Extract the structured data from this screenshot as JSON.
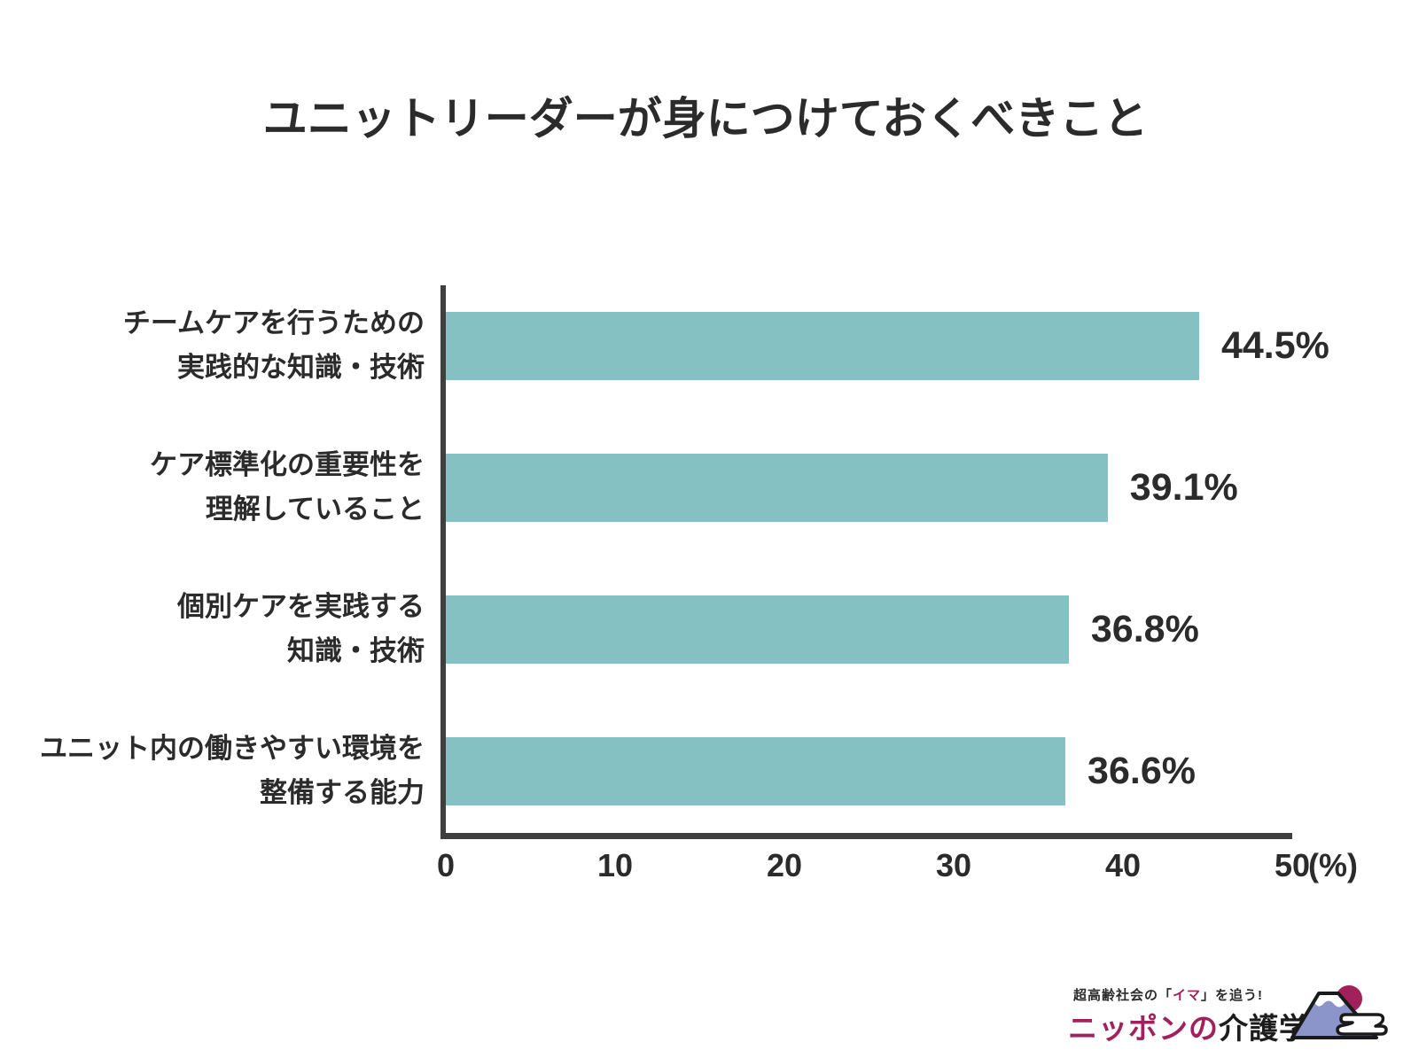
{
  "title": "ユニットリーダーが身につけておくべきこと",
  "chart_data": {
    "type": "bar",
    "orientation": "horizontal",
    "title": "ユニットリーダーが身につけておくべきこと",
    "categories": [
      "チームケアを行うための実践的な知識・技術",
      "ケア標準化の重要性を理解していること",
      "個別ケアを実践する知識・技術",
      "ユニット内の働きやすい環境を整備する能力"
    ],
    "category_lines": [
      [
        "チームケアを行うための",
        "実践的な知識・技術"
      ],
      [
        "ケア標準化の重要性を",
        "理解していること"
      ],
      [
        "個別ケアを実践する",
        "知識・技術"
      ],
      [
        "ユニット内の働きやすい環境を",
        "整備する能力"
      ]
    ],
    "values": [
      44.5,
      39.1,
      36.8,
      36.6
    ],
    "value_labels": [
      "44.5%",
      "39.1%",
      "36.8%",
      "36.6%"
    ],
    "xlim": [
      0,
      50
    ],
    "x_ticks": [
      "0",
      "10",
      "20",
      "30",
      "40",
      "50"
    ],
    "x_unit": "(%)",
    "bar_color": "#85c1c3",
    "axis_color": "#3f3f3f",
    "grid": false,
    "legend": false
  },
  "logo": {
    "tagline_prefix": "超高齢社会の「",
    "tagline_highlight": "イマ",
    "tagline_suffix": "」を追う!",
    "brand_primary": "ニッポンの",
    "brand_secondary": "介護学",
    "accent_color": "#a1215a",
    "fuji_blue": "#8b95c9"
  }
}
